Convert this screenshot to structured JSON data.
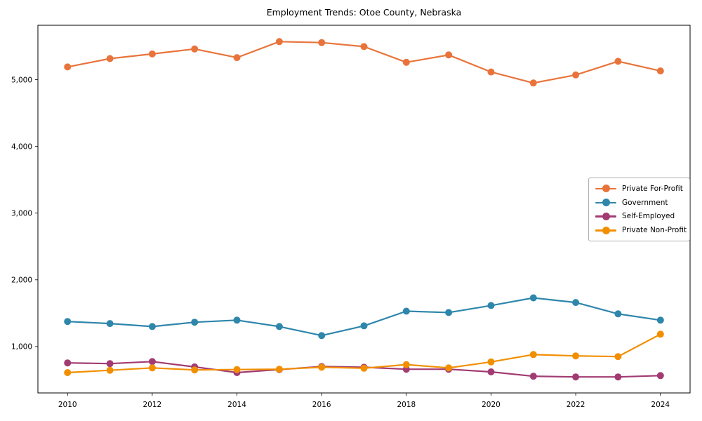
{
  "figure": {
    "background": "#ffffff",
    "frame_color": "#000000",
    "legend_border_color": "#b0b0b0"
  },
  "chart_data": {
    "type": "line",
    "title": "Employment Trends: Otoe County, Nebraska",
    "xlabel": "",
    "ylabel": "",
    "x": [
      2010,
      2011,
      2012,
      2013,
      2014,
      2015,
      2016,
      2017,
      2018,
      2019,
      2020,
      2021,
      2022,
      2023,
      2024
    ],
    "series": [
      {
        "name": "Private For-Profit",
        "color": "#E8743B",
        "values": [
          5190,
          5315,
          5385,
          5460,
          5330,
          5570,
          5555,
          5495,
          5260,
          5370,
          5115,
          4950,
          5070,
          5275,
          5130
        ]
      },
      {
        "name": "Government",
        "color": "#2E86AB",
        "values": [
          1375,
          1345,
          1300,
          1365,
          1395,
          1300,
          1165,
          1310,
          1530,
          1510,
          1615,
          1730,
          1660,
          1490,
          1395
        ]
      },
      {
        "name": "Self-Employed",
        "color": "#A23B72",
        "values": [
          755,
          745,
          775,
          695,
          610,
          655,
          700,
          690,
          660,
          660,
          620,
          555,
          545,
          545,
          565
        ]
      },
      {
        "name": "Private Non-Profit",
        "color": "#F18F01",
        "values": [
          610,
          645,
          680,
          650,
          655,
          660,
          690,
          675,
          730,
          680,
          770,
          880,
          860,
          850,
          1185
        ]
      }
    ],
    "x_ticks": [
      2010,
      2012,
      2014,
      2016,
      2018,
      2020,
      2022,
      2024
    ],
    "x_tick_labels": [
      "2010",
      "2012",
      "2014",
      "2016",
      "2018",
      "2020",
      "2022",
      "2024"
    ],
    "y_ticks": [
      1000,
      2000,
      3000,
      4000,
      5000
    ],
    "y_tick_labels": [
      "1,000",
      "2,000",
      "3,000",
      "4,000",
      "5,000"
    ],
    "xlim": [
      2009.3,
      2024.7
    ],
    "ylim": [
      305,
      5815
    ],
    "grid": false,
    "legend_position": "center right"
  }
}
